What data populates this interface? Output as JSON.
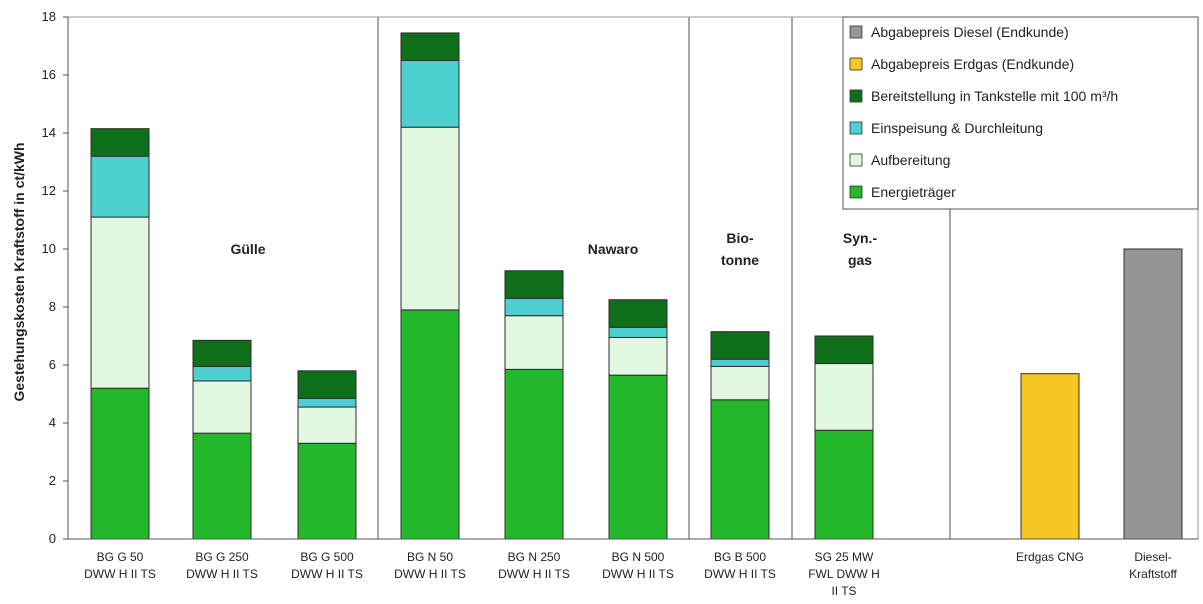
{
  "chart_data": {
    "type": "bar",
    "stacked": true,
    "ylabel": "Gestehungskosten Kraftstoff in ct/kWh",
    "ylim": [
      0,
      18
    ],
    "yticks": [
      "0",
      "2",
      "4",
      "6",
      "8",
      "10",
      "12",
      "14",
      "16",
      "18"
    ],
    "categories": [
      [
        "BG G 50",
        "DWW H II TS"
      ],
      [
        "BG G 250",
        "DWW H II TS"
      ],
      [
        "BG G 500",
        "DWW H II TS"
      ],
      [
        "BG N 50",
        "DWW H II TS"
      ],
      [
        "BG N 250",
        "DWW H II TS"
      ],
      [
        "BG N 500",
        "DWW H II TS"
      ],
      [
        "BG B 500",
        "DWW H II TS"
      ],
      [
        "SG 25 MW",
        "FWL DWW H",
        "II TS"
      ],
      [
        "Erdgas CNG"
      ],
      [
        "Diesel-",
        "Kraftstoff"
      ]
    ],
    "series": [
      {
        "name": "Energieträger",
        "color": "#22b82a",
        "values": [
          5.2,
          3.65,
          3.3,
          7.9,
          5.85,
          5.65,
          4.8,
          3.75,
          0,
          0
        ]
      },
      {
        "name": "Aufbereitung",
        "color": "#e3f8e1",
        "values": [
          5.9,
          1.8,
          1.25,
          6.3,
          1.85,
          1.3,
          1.15,
          2.3,
          0,
          0
        ]
      },
      {
        "name": "Einspeisung & Durchleitung",
        "color": "#4dcfcf",
        "values": [
          2.1,
          0.5,
          0.3,
          2.3,
          0.6,
          0.35,
          0.25,
          0,
          0,
          0
        ]
      },
      {
        "name": "Bereitstellung in Tankstelle mit 100 m³/h",
        "color": "#0f6e1a",
        "values": [
          0.95,
          0.9,
          0.95,
          0.95,
          0.95,
          0.95,
          0.95,
          0.95,
          0,
          0
        ]
      },
      {
        "name": "Abgabepreis Erdgas (Endkunde)",
        "color": "#f6c623",
        "values": [
          0,
          0,
          0,
          0,
          0,
          0,
          0,
          0,
          5.7,
          0
        ]
      },
      {
        "name": "Abgabepreis Diesel (Endkunde)",
        "color": "#959595",
        "values": [
          0,
          0,
          0,
          0,
          0,
          0,
          0,
          0,
          0,
          10.0
        ]
      }
    ],
    "legend_order": [
      5,
      4,
      3,
      2,
      1,
      0
    ],
    "legend_position": "top-right",
    "group_labels": [
      {
        "lines": [
          "Gülle"
        ],
        "y": 10
      },
      {
        "lines": [
          "Nawaro"
        ],
        "y": 10
      },
      {
        "lines": [
          "Bio-",
          "tonne"
        ],
        "y": 10
      },
      {
        "lines": [
          "Syn.-",
          "gas"
        ],
        "y": 10
      }
    ],
    "grid": false
  }
}
